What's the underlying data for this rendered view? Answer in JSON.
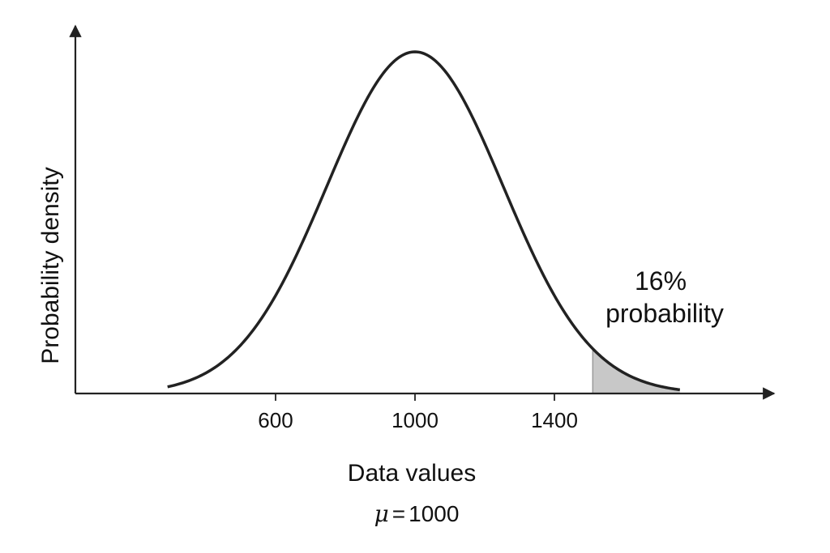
{
  "chart_data": {
    "type": "area",
    "distribution": "normal",
    "mean": 1000,
    "x_range": [
      290,
      1760
    ],
    "shaded_region": {
      "from": 1510,
      "to": 1760,
      "fill": "#c8c8c8",
      "label_line1": "16%",
      "label_line2": "probability"
    },
    "xlabel": "Data values",
    "ylabel": "Probability density",
    "x_ticks": [
      {
        "value": 600,
        "label": "600"
      },
      {
        "value": 1000,
        "label": "1000"
      },
      {
        "value": 1400,
        "label": "1400"
      }
    ],
    "subtitle": {
      "symbol": "μ",
      "equals": "=",
      "value": "1000"
    },
    "grid": false,
    "colors": {
      "curve": "#222222",
      "axis": "#222222",
      "shade": "#c8c8c8"
    }
  }
}
